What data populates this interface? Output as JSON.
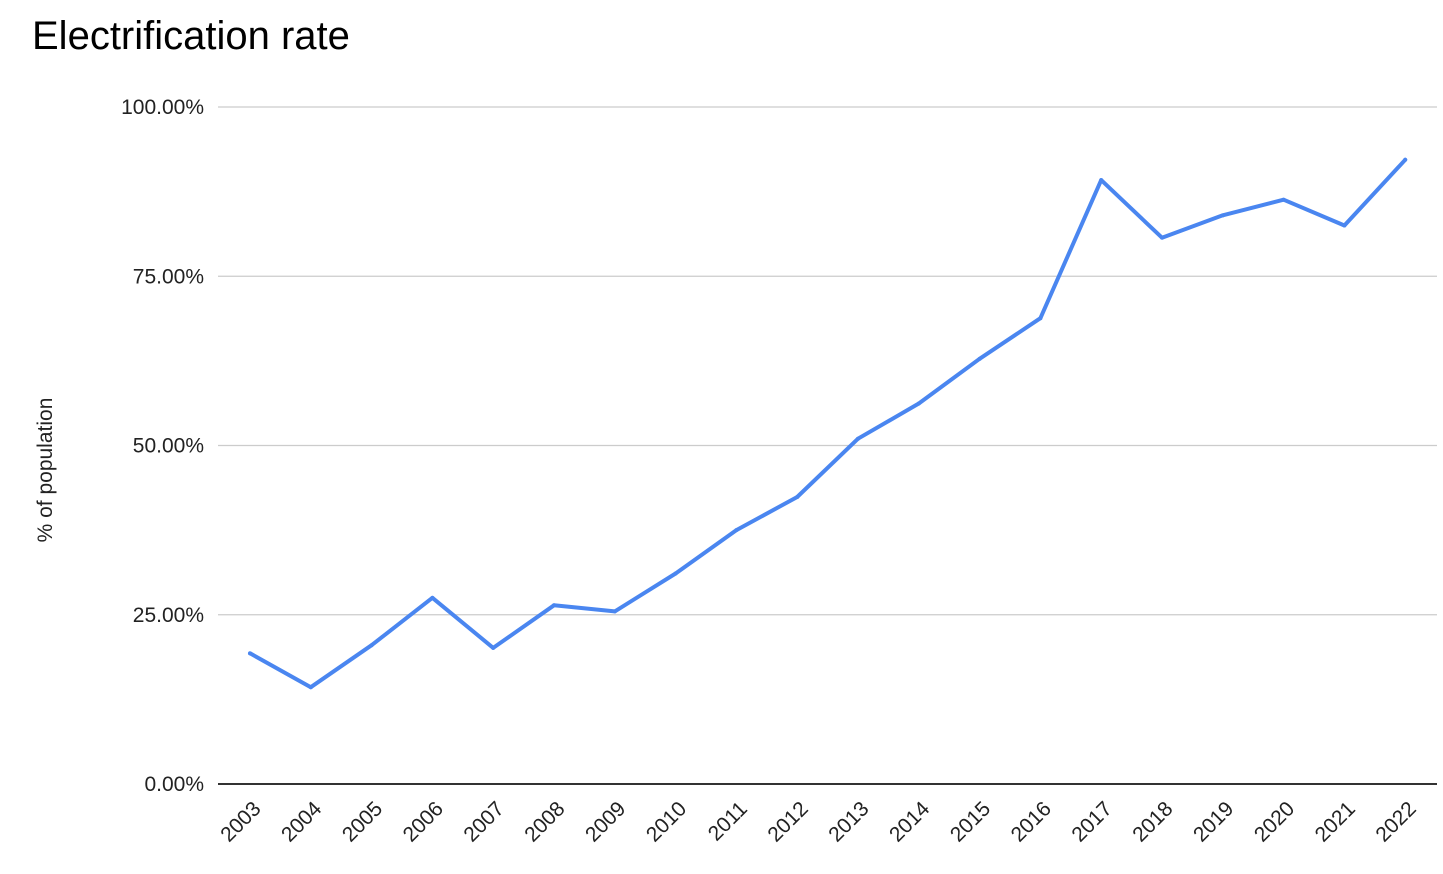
{
  "chart_data": {
    "type": "line",
    "title": "Electrification rate",
    "xlabel": "",
    "ylabel": "% of population",
    "ylim": [
      0,
      100
    ],
    "yticks": [
      0,
      25,
      50,
      75,
      100
    ],
    "ytick_labels": [
      "0.00%",
      "25.00%",
      "50.00%",
      "75.00%",
      "100.00%"
    ],
    "grid": true,
    "legend": "none",
    "categories": [
      "2003",
      "2004",
      "2005",
      "2006",
      "2007",
      "2008",
      "2009",
      "2010",
      "2011",
      "2012",
      "2013",
      "2014",
      "2015",
      "2016",
      "2017",
      "2018",
      "2019",
      "2020",
      "2021",
      "2022"
    ],
    "series": [
      {
        "color": "#4a86f0",
        "values": [
          19.3,
          14.3,
          20.5,
          27.5,
          20.1,
          26.4,
          25.5,
          31.1,
          37.5,
          42.4,
          51.0,
          56.2,
          62.8,
          68.8,
          89.2,
          80.7,
          84.0,
          86.3,
          82.5,
          92.2
        ]
      }
    ]
  }
}
